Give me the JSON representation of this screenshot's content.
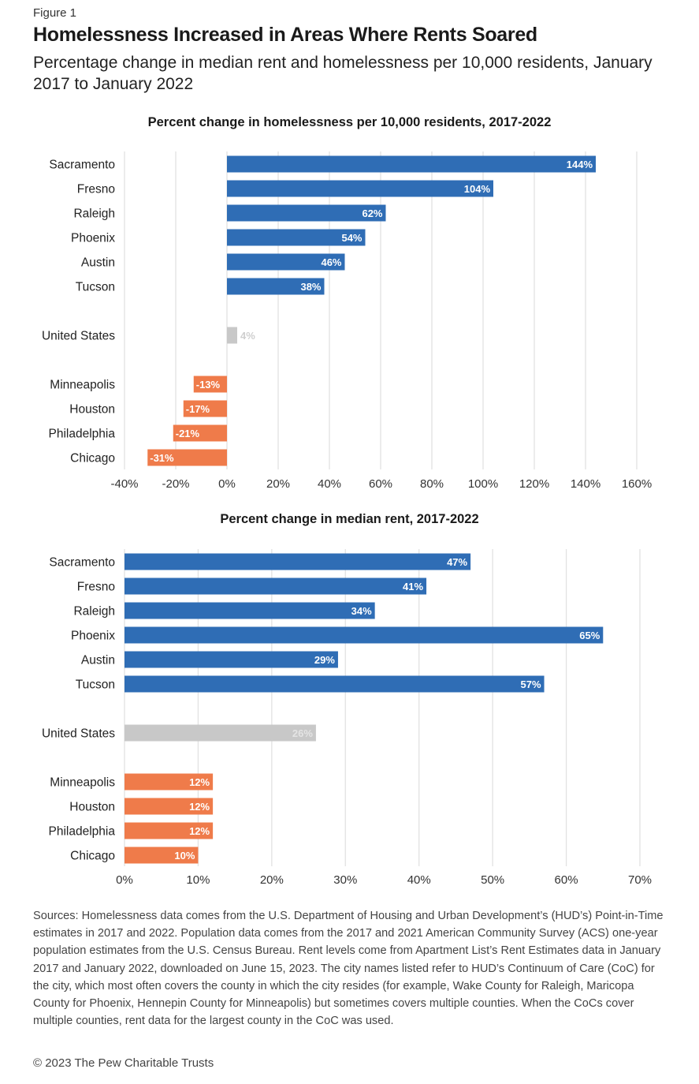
{
  "figure_label": "Figure 1",
  "title": "Homelessness Increased in Areas Where Rents Soared",
  "subtitle": "Percentage change in median rent and homelessness per 10,000 residents, January 2017 to January 2022",
  "colors": {
    "blue": "#2f6db5",
    "orange": "#ef7b4a",
    "gray": "#c8c8c8",
    "grid": "#e2e2e2"
  },
  "chart_data": [
    {
      "type": "bar",
      "orientation": "horizontal",
      "title": "Percent change in homelessness per 10,000 residents, 2017-2022",
      "categories": [
        "Sacramento",
        "Fresno",
        "Raleigh",
        "Phoenix",
        "Austin",
        "Tucson",
        "United States",
        "Minneapolis",
        "Houston",
        "Philadelphia",
        "Chicago"
      ],
      "values": [
        144,
        104,
        62,
        54,
        46,
        38,
        4,
        -13,
        -17,
        -21,
        -31
      ],
      "groups": [
        "blue",
        "blue",
        "blue",
        "blue",
        "blue",
        "blue",
        "gray",
        "orange",
        "orange",
        "orange",
        "orange"
      ],
      "value_labels": [
        "144%",
        "104%",
        "62%",
        "54%",
        "46%",
        "38%",
        "4%",
        "-13%",
        "-17%",
        "-21%",
        "-31%"
      ],
      "xlim": [
        -40,
        160
      ],
      "ticks": [
        -40,
        -20,
        0,
        20,
        40,
        60,
        80,
        100,
        120,
        140,
        160
      ],
      "tick_labels": [
        "-40%",
        "-20%",
        "0%",
        "20%",
        "40%",
        "60%",
        "80%",
        "100%",
        "120%",
        "140%",
        "160%"
      ]
    },
    {
      "type": "bar",
      "orientation": "horizontal",
      "title": "Percent change in median rent, 2017-2022",
      "categories": [
        "Sacramento",
        "Fresno",
        "Raleigh",
        "Phoenix",
        "Austin",
        "Tucson",
        "United States",
        "Minneapolis",
        "Houston",
        "Philadelphia",
        "Chicago"
      ],
      "values": [
        47,
        41,
        34,
        65,
        29,
        57,
        26,
        12,
        12,
        12,
        10
      ],
      "groups": [
        "blue",
        "blue",
        "blue",
        "blue",
        "blue",
        "blue",
        "gray",
        "orange",
        "orange",
        "orange",
        "orange"
      ],
      "value_labels": [
        "47%",
        "41%",
        "34%",
        "65%",
        "29%",
        "57%",
        "26%",
        "12%",
        "12%",
        "12%",
        "10%"
      ],
      "xlim": [
        0,
        70
      ],
      "ticks": [
        0,
        10,
        20,
        30,
        40,
        50,
        60,
        70
      ],
      "tick_labels": [
        "0%",
        "10%",
        "20%",
        "30%",
        "40%",
        "50%",
        "60%",
        "70%"
      ]
    }
  ],
  "sources": "Sources: Homelessness data comes from the U.S. Department of Housing and Urban Development’s (HUD’s) Point-in-Time estimates in 2017 and 2022. Population data comes from the 2017 and 2021 American Community Survey (ACS) one-year population estimates from the U.S. Census Bureau. Rent levels come from Apartment List’s Rent Estimates data in January 2017 and January 2022, downloaded on June 15, 2023. The city names listed refer to HUD’s Continuum of Care (CoC) for the city, which most often covers the county in which the city resides (for example, Wake County for Raleigh, Maricopa County for Phoenix, Hennepin County for Minneapolis) but sometimes covers multiple counties. When the CoCs cover multiple counties, rent data for the largest county in the CoC was used.",
  "copyright": "© 2023 The Pew Charitable Trusts"
}
